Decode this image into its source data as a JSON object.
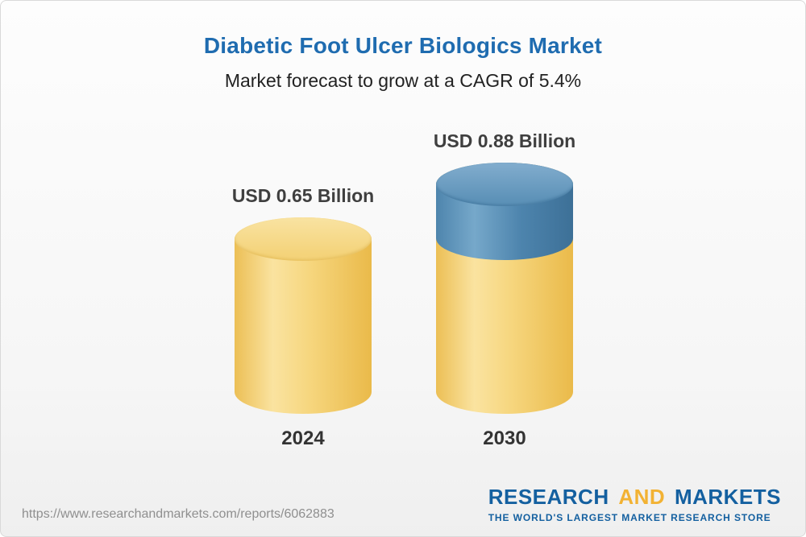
{
  "header": {
    "title": "Diabetic Foot Ulcer Biologics Market",
    "subtitle": "Market forecast to grow at a CAGR of 5.4%"
  },
  "chart_data": {
    "type": "bar",
    "bar_style": "3d-cylinder",
    "categories": [
      "2024",
      "2030"
    ],
    "values": [
      0.65,
      0.88
    ],
    "value_labels": [
      "USD 0.65 Billion",
      "USD 0.88 Billion"
    ],
    "unit": "USD Billion",
    "title": "Diabetic Foot Ulcer Biologics Market",
    "subtitle": "Market forecast to grow at a CAGR of 5.4%",
    "cagr": "5.4%",
    "ylim": [
      0,
      1.0
    ],
    "grid": false,
    "legend": false,
    "colors": {
      "base_segment": "#f2c94c",
      "growth_segment": "#4a82ab"
    },
    "note": "2030 cylinder shows growth above the 2024 level as a blue top segment"
  },
  "footer": {
    "url": "https://www.researchandmarkets.com/reports/6062883",
    "logo": {
      "research": "RESEARCH",
      "and": "AND",
      "markets": "MARKETS",
      "tagline": "THE WORLD'S LARGEST MARKET RESEARCH STORE"
    }
  }
}
